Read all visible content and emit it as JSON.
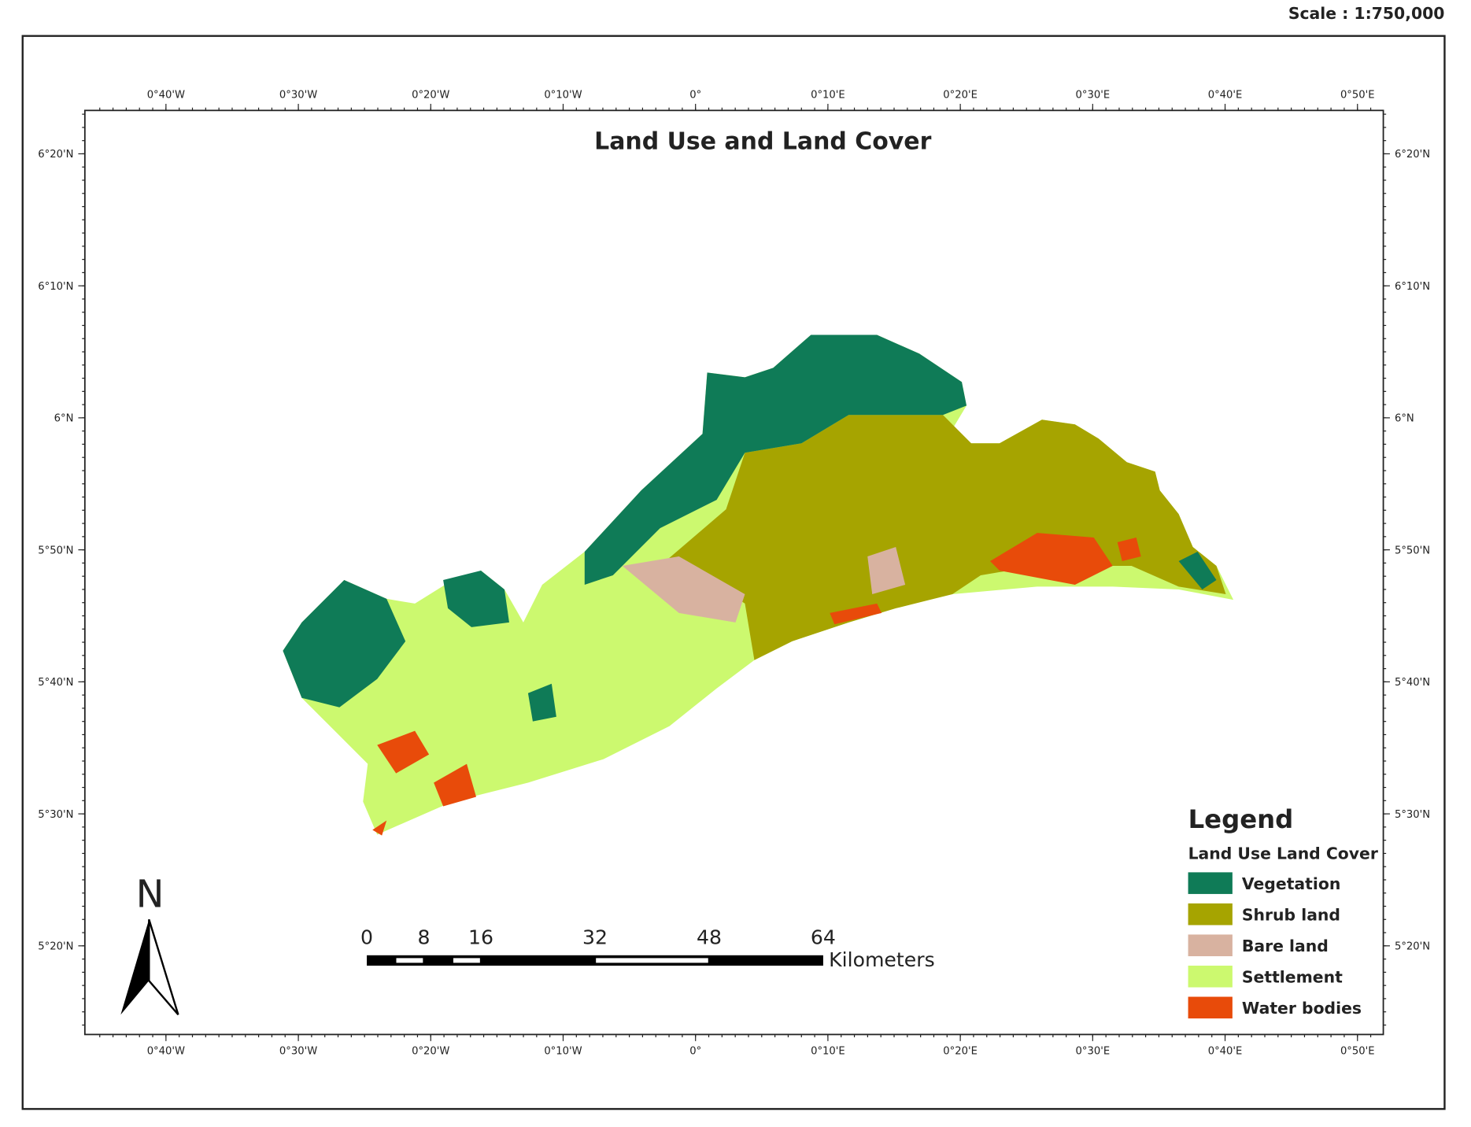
{
  "header": {
    "scale": "Scale : 1:750,000"
  },
  "map": {
    "title": "Land Use and Land Cover",
    "longitude_labels": [
      "0°40'W",
      "0°30'W",
      "0°20'W",
      "0°10'W",
      "0°",
      "0°10'E",
      "0°20'E",
      "0°30'E",
      "0°40'E",
      "0°50'E"
    ],
    "latitude_labels": [
      "6°20'N",
      "6°10'N",
      "6°N",
      "5°50'N",
      "5°40'N",
      "5°30'N",
      "5°20'N"
    ]
  },
  "legend": {
    "title": "Legend",
    "subtitle": "Land Use Land Cover",
    "items": [
      {
        "label": "Vegetation",
        "color": "#0f7b57"
      },
      {
        "label": "Shrub land",
        "color": "#a6a400"
      },
      {
        "label": "Bare land",
        "color": "#d8b2a0"
      },
      {
        "label": "Settlement",
        "color": "#ccf96f"
      },
      {
        "label": "Water bodies",
        "color": "#e84b0a"
      }
    ]
  },
  "scale_bar": {
    "ticks": [
      0,
      8,
      16,
      32,
      48,
      64
    ],
    "unit": "Kilometers"
  },
  "north_arrow": {
    "label": "N"
  }
}
